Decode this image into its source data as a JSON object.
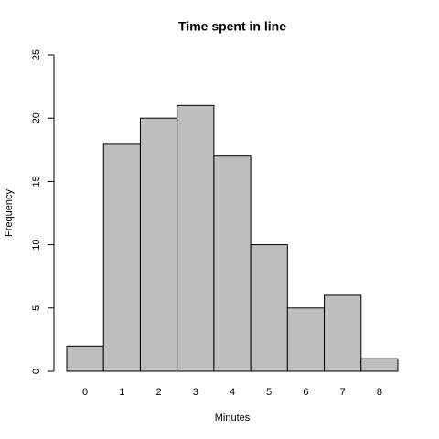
{
  "chart_data": {
    "type": "bar",
    "title": "Time spent in line",
    "x_label": "Minutes",
    "y_label": "Frequency",
    "categories": [
      "0",
      "1",
      "2",
      "3",
      "4",
      "5",
      "6",
      "7",
      "8"
    ],
    "values": [
      2,
      18,
      20,
      21,
      17,
      10,
      5,
      6,
      1
    ],
    "color": "#bebebe",
    "ylim": [
      0,
      25
    ],
    "yticks": [
      0,
      5,
      10,
      15,
      20,
      25
    ],
    "grid": false
  }
}
